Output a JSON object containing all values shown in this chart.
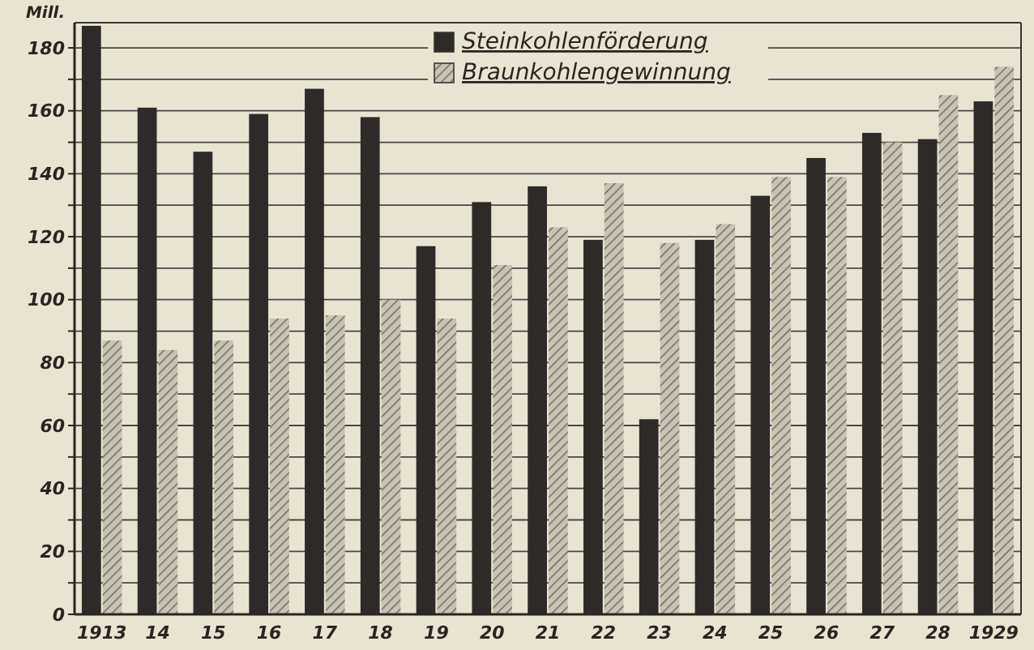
{
  "chart_data": {
    "type": "bar",
    "ylabel": "Mill.",
    "categories": [
      "1913",
      "14",
      "15",
      "16",
      "17",
      "18",
      "19",
      "20",
      "21",
      "22",
      "23",
      "24",
      "25",
      "26",
      "27",
      "28",
      "1929"
    ],
    "series": [
      {
        "name": "Steinkohlenförderung",
        "color": "#2e2a29",
        "values": [
          187,
          161,
          147,
          159,
          167,
          158,
          117,
          131,
          136,
          119,
          62,
          119,
          133,
          145,
          153,
          151,
          163
        ]
      },
      {
        "name": "Braunkohlengewinnung",
        "color": "#c9c3b4",
        "values": [
          87,
          84,
          87,
          94,
          95,
          100,
          94,
          111,
          123,
          137,
          118,
          124,
          139,
          139,
          150,
          165,
          174
        ]
      }
    ],
    "ylim": [
      0,
      188
    ],
    "yticks": [
      0,
      {
        "value": 10,
        "label": null
      },
      20,
      {
        "value": 30,
        "label": null
      },
      40,
      {
        "value": 50,
        "label": null
      },
      60,
      {
        "value": 70,
        "label": null
      },
      80,
      {
        "value": 90,
        "label": null
      },
      100,
      {
        "value": 110,
        "label": null
      },
      120,
      {
        "value": 130,
        "label": null
      },
      140,
      {
        "value": 150,
        "label": null
      },
      160,
      {
        "value": 170,
        "label": null
      },
      180
    ],
    "grid": "y",
    "legend": "top right"
  }
}
